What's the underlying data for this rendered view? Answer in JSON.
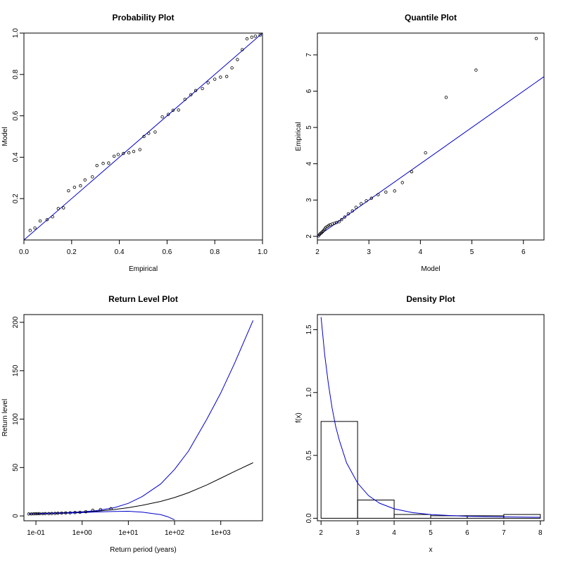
{
  "chart_data": [
    {
      "panel": "top-left",
      "type": "scatter",
      "title": "Probability Plot",
      "xlabel": "Empirical",
      "ylabel": "Model",
      "xlim": [
        0,
        1
      ],
      "ylim": [
        0,
        1
      ],
      "xticks": [
        "0.0",
        "0.2",
        "0.4",
        "0.6",
        "0.8",
        "1.0"
      ],
      "yticks": [
        "0.2",
        "0.4",
        "0.6",
        "0.8",
        "1.0"
      ],
      "x": [
        0.026,
        0.046,
        0.068,
        0.097,
        0.12,
        0.144,
        0.166,
        0.187,
        0.212,
        0.237,
        0.256,
        0.287,
        0.306,
        0.332,
        0.355,
        0.378,
        0.395,
        0.417,
        0.44,
        0.46,
        0.486,
        0.503,
        0.523,
        0.55,
        0.58,
        0.605,
        0.625,
        0.648,
        0.675,
        0.7,
        0.72,
        0.748,
        0.772,
        0.8,
        0.824,
        0.85,
        0.872,
        0.895,
        0.915,
        0.935,
        0.955,
        0.97,
        0.99
      ],
      "y": [
        0.046,
        0.058,
        0.092,
        0.098,
        0.112,
        0.152,
        0.155,
        0.238,
        0.255,
        0.262,
        0.29,
        0.305,
        0.36,
        0.37,
        0.372,
        0.405,
        0.413,
        0.418,
        0.421,
        0.428,
        0.437,
        0.5,
        0.515,
        0.522,
        0.595,
        0.607,
        0.627,
        0.628,
        0.68,
        0.702,
        0.722,
        0.732,
        0.76,
        0.777,
        0.787,
        0.79,
        0.832,
        0.872,
        0.92,
        0.972,
        0.98,
        0.985,
        0.99
      ],
      "line": {
        "from": [
          0,
          0
        ],
        "to": [
          1,
          1
        ],
        "color": "#0000cc"
      }
    },
    {
      "panel": "top-right",
      "type": "scatter",
      "title": "Quantile Plot",
      "xlabel": "Model",
      "ylabel": "Empirical",
      "xlim": [
        2,
        6.4
      ],
      "ylim": [
        1.9,
        7.6
      ],
      "xticks": [
        "2",
        "3",
        "4",
        "5",
        "6"
      ],
      "yticks": [
        "2",
        "3",
        "4",
        "5",
        "6",
        "7"
      ],
      "x": [
        2.02,
        2.04,
        2.06,
        2.08,
        2.1,
        2.12,
        2.14,
        2.16,
        2.19,
        2.22,
        2.25,
        2.29,
        2.33,
        2.37,
        2.42,
        2.47,
        2.53,
        2.6,
        2.68,
        2.75,
        2.85,
        2.95,
        3.05,
        3.18,
        3.33,
        3.5,
        3.65,
        3.83,
        4.1,
        4.5,
        5.08,
        6.25
      ],
      "y": [
        2.01,
        2.05,
        2.08,
        2.1,
        2.13,
        2.16,
        2.2,
        2.24,
        2.27,
        2.3,
        2.32,
        2.34,
        2.36,
        2.38,
        2.4,
        2.46,
        2.53,
        2.62,
        2.7,
        2.8,
        2.9,
        2.98,
        3.05,
        3.15,
        3.22,
        3.25,
        3.48,
        3.78,
        4.3,
        5.83,
        6.58,
        7.45
      ],
      "line": {
        "from": [
          2,
          2
        ],
        "to": [
          6.4,
          6.4
        ],
        "color": "#0000cc"
      }
    },
    {
      "panel": "bottom-left",
      "type": "line",
      "title": "Return Level Plot",
      "xlabel": "Return period (years)",
      "ylabel": "Return level",
      "x_scale": "log",
      "xlim": [
        0.055,
        8000
      ],
      "ylim": [
        -5,
        208
      ],
      "xticks": [
        "1e-01",
        "1e+00",
        "1e+01",
        "1e+02",
        "1e+03"
      ],
      "xtick_values": [
        0.1,
        1,
        10,
        100,
        1000
      ],
      "yticks": [
        "0",
        "50",
        "100",
        "150",
        "200"
      ],
      "series": [
        {
          "role": "estimate",
          "color": "#000000",
          "x": [
            0.07,
            0.1,
            0.2,
            0.5,
            1,
            2,
            5,
            10,
            20,
            50,
            100,
            200,
            500,
            1000,
            2000,
            5000
          ],
          "y": [
            2.0,
            2.3,
            2.7,
            3.2,
            3.8,
            4.8,
            6.6,
            8.5,
            11,
            15,
            19,
            24,
            32,
            39,
            46,
            55
          ]
        },
        {
          "role": "upper-ci",
          "color": "#0000cc",
          "x": [
            0.07,
            0.1,
            0.2,
            0.5,
            1,
            2,
            5,
            10,
            20,
            50,
            100,
            200,
            500,
            1000,
            2000,
            5000
          ],
          "y": [
            2.2,
            2.5,
            2.9,
            3.5,
            4.2,
            5.5,
            8.5,
            13,
            20,
            33,
            48,
            67,
            100,
            127,
            158,
            202
          ]
        },
        {
          "role": "lower-ci",
          "color": "#0000cc",
          "x": [
            0.07,
            0.1,
            0.2,
            0.5,
            1,
            2,
            5,
            10,
            20,
            50,
            70,
            100
          ],
          "y": [
            1.9,
            2.1,
            2.5,
            2.9,
            3.4,
            4.1,
            4.7,
            4.8,
            3.9,
            1.3,
            -0.7,
            -4
          ]
        }
      ],
      "points": {
        "x": [
          0.07,
          0.08,
          0.09,
          0.1,
          0.11,
          0.12,
          0.14,
          0.16,
          0.19,
          0.22,
          0.26,
          0.3,
          0.36,
          0.44,
          0.55,
          0.7,
          0.9,
          1.2,
          1.7,
          2.5,
          4.2
        ],
        "y": [
          2.0,
          2.05,
          2.1,
          2.2,
          2.3,
          2.32,
          2.35,
          2.38,
          2.4,
          2.5,
          2.62,
          2.8,
          2.98,
          3.1,
          3.22,
          3.47,
          3.78,
          4.3,
          5.83,
          6.58,
          7.45
        ]
      }
    },
    {
      "panel": "bottom-right",
      "type": "bar",
      "title": "Density Plot",
      "xlabel": "x",
      "ylabel": "f(x)",
      "xlim": [
        1.9,
        8.1
      ],
      "ylim": [
        -0.02,
        1.62
      ],
      "xticks": [
        "2",
        "3",
        "4",
        "5",
        "6",
        "7",
        "8"
      ],
      "yticks": [
        "0.0",
        "0.5",
        "1.0",
        "1.5"
      ],
      "bins": [
        [
          2,
          3
        ],
        [
          3,
          4
        ],
        [
          4,
          5
        ],
        [
          5,
          6
        ],
        [
          6,
          7
        ],
        [
          7,
          8
        ]
      ],
      "values": [
        0.77,
        0.145,
        0.03,
        0.02,
        0.02,
        0.03
      ],
      "curve": {
        "color": "#0000cc",
        "x": [
          2.0,
          2.05,
          2.1,
          2.2,
          2.3,
          2.4,
          2.5,
          2.7,
          3.0,
          3.3,
          3.6,
          4.0,
          4.5,
          5.0,
          5.5,
          6.0,
          7.0,
          8.0
        ],
        "y": [
          1.6,
          1.45,
          1.3,
          1.07,
          0.88,
          0.73,
          0.62,
          0.44,
          0.28,
          0.18,
          0.12,
          0.075,
          0.045,
          0.03,
          0.022,
          0.016,
          0.011,
          0.008
        ]
      }
    }
  ]
}
